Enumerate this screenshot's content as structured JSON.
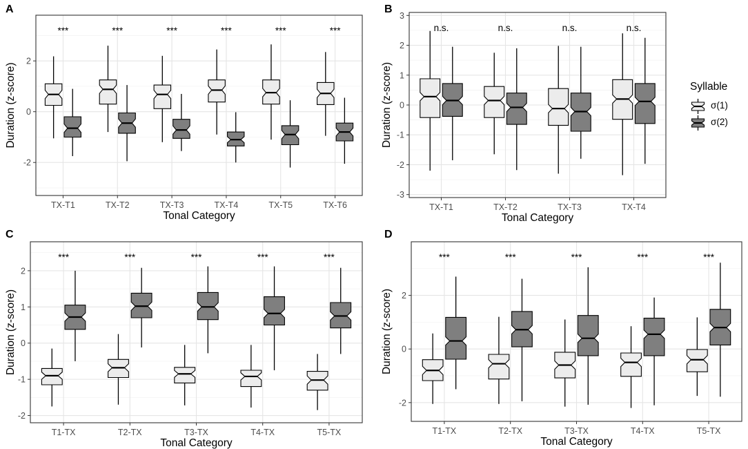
{
  "colors": {
    "sigma1": "#ececec",
    "sigma2": "#7f7f7f",
    "grid": "#e5e5e5",
    "border": "#333333"
  },
  "legend": {
    "title": "Syllable",
    "items": [
      {
        "label": "σ(1)",
        "color": "#ececec"
      },
      {
        "label": "σ(2)",
        "color": "#7f7f7f"
      }
    ]
  },
  "chart_data": [
    {
      "type": "boxplot",
      "panel": "A",
      "xlabel": "Tonal Category",
      "ylabel": "Duration (z-score)",
      "ylim": [
        -3.3,
        3.8
      ],
      "yticks": [
        -2,
        0,
        2
      ],
      "categories": [
        "TX-T1",
        "TX-T2",
        "TX-T3",
        "TX-T4",
        "TX-T5",
        "TX-T6"
      ],
      "significance": [
        "***",
        "***",
        "***",
        "***",
        "***",
        "***"
      ],
      "series": [
        {
          "name": "σ(1)",
          "boxes": [
            {
              "min": -1.05,
              "q1": 0.25,
              "median": 0.68,
              "q3": 1.1,
              "max": 2.18
            },
            {
              "min": -0.8,
              "q1": 0.3,
              "median": 0.88,
              "q3": 1.25,
              "max": 2.6
            },
            {
              "min": -1.2,
              "q1": 0.12,
              "median": 0.68,
              "q3": 1.05,
              "max": 2.2
            },
            {
              "min": -0.9,
              "q1": 0.38,
              "median": 0.85,
              "q3": 1.25,
              "max": 2.45
            },
            {
              "min": -1.1,
              "q1": 0.3,
              "median": 0.75,
              "q3": 1.25,
              "max": 2.65
            },
            {
              "min": -0.95,
              "q1": 0.28,
              "median": 0.72,
              "q3": 1.15,
              "max": 2.35
            }
          ]
        },
        {
          "name": "σ(2)",
          "boxes": [
            {
              "min": -1.75,
              "q1": -1.0,
              "median": -0.65,
              "q3": -0.2,
              "max": 0.9
            },
            {
              "min": -1.95,
              "q1": -0.85,
              "median": -0.45,
              "q3": -0.05,
              "max": 1.05
            },
            {
              "min": -1.55,
              "q1": -1.05,
              "median": -0.72,
              "q3": -0.3,
              "max": 0.7
            },
            {
              "min": -2.0,
              "q1": -1.35,
              "median": -1.1,
              "q3": -0.8,
              "max": -0.02
            },
            {
              "min": -2.2,
              "q1": -1.3,
              "median": -0.9,
              "q3": -0.55,
              "max": 0.45
            },
            {
              "min": -2.05,
              "q1": -1.15,
              "median": -0.8,
              "q3": -0.45,
              "max": 0.55
            }
          ]
        }
      ]
    },
    {
      "type": "boxplot",
      "panel": "B",
      "xlabel": "Tonal Category",
      "ylabel": "Duration (z-score)",
      "ylim": [
        -3.1,
        3.1
      ],
      "yticks": [
        -3,
        -2,
        -1,
        0,
        1,
        2,
        3
      ],
      "categories": [
        "TX-T1",
        "TX-T2",
        "TX-T3",
        "TX-T4"
      ],
      "significance": [
        "n.s.",
        "n.s.",
        "n.s.",
        "n.s."
      ],
      "series": [
        {
          "name": "σ(1)",
          "boxes": [
            {
              "min": -2.2,
              "q1": -0.42,
              "median": 0.28,
              "q3": 0.88,
              "max": 2.48
            },
            {
              "min": -1.65,
              "q1": -0.42,
              "median": 0.15,
              "q3": 0.62,
              "max": 1.75
            },
            {
              "min": -2.3,
              "q1": -0.68,
              "median": -0.12,
              "q3": 0.55,
              "max": 1.98
            },
            {
              "min": -2.35,
              "q1": -0.48,
              "median": 0.2,
              "q3": 0.85,
              "max": 2.4
            }
          ]
        },
        {
          "name": "σ(2)",
          "boxes": [
            {
              "min": -1.85,
              "q1": -0.38,
              "median": 0.15,
              "q3": 0.72,
              "max": 1.95
            },
            {
              "min": -2.18,
              "q1": -0.65,
              "median": -0.08,
              "q3": 0.4,
              "max": 1.9
            },
            {
              "min": -1.8,
              "q1": -0.88,
              "median": -0.22,
              "q3": 0.4,
              "max": 1.95
            },
            {
              "min": -1.97,
              "q1": -0.62,
              "median": 0.12,
              "q3": 0.72,
              "max": 2.25
            }
          ]
        }
      ]
    },
    {
      "type": "boxplot",
      "panel": "C",
      "xlabel": "Tonal Category",
      "ylabel": "Duration (z-score)",
      "ylim": [
        -2.2,
        2.8
      ],
      "yticks": [
        -2,
        -1,
        0,
        1,
        2
      ],
      "categories": [
        "T1-TX",
        "T2-TX",
        "T3-TX",
        "T4-TX",
        "T5-TX"
      ],
      "significance": [
        "***",
        "***",
        "***",
        "***",
        "***"
      ],
      "series": [
        {
          "name": "σ(1)",
          "boxes": [
            {
              "min": -1.75,
              "q1": -1.15,
              "median": -0.9,
              "q3": -0.7,
              "max": -0.15
            },
            {
              "min": -1.7,
              "q1": -0.95,
              "median": -0.68,
              "q3": -0.45,
              "max": 0.25
            },
            {
              "min": -1.72,
              "q1": -1.1,
              "median": -0.85,
              "q3": -0.67,
              "max": -0.05
            },
            {
              "min": -1.78,
              "q1": -1.2,
              "median": -0.92,
              "q3": -0.75,
              "max": -0.05
            },
            {
              "min": -1.85,
              "q1": -1.3,
              "median": -1.02,
              "q3": -0.78,
              "max": -0.3
            }
          ]
        },
        {
          "name": "σ(2)",
          "boxes": [
            {
              "min": -0.5,
              "q1": 0.38,
              "median": 0.72,
              "q3": 1.05,
              "max": 2.0
            },
            {
              "min": -0.12,
              "q1": 0.7,
              "median": 1.02,
              "q3": 1.38,
              "max": 2.08
            },
            {
              "min": -0.28,
              "q1": 0.65,
              "median": 1.0,
              "q3": 1.4,
              "max": 2.12
            },
            {
              "min": -0.75,
              "q1": 0.5,
              "median": 0.82,
              "q3": 1.28,
              "max": 2.12
            },
            {
              "min": -0.3,
              "q1": 0.42,
              "median": 0.75,
              "q3": 1.12,
              "max": 2.08
            }
          ]
        }
      ]
    },
    {
      "type": "boxplot",
      "panel": "D",
      "xlabel": "Tonal Category",
      "ylabel": "Duration (z-score)",
      "ylim": [
        -2.7,
        4.0
      ],
      "yticks": [
        -2,
        0,
        2
      ],
      "categories": [
        "T1-TX",
        "T2-TX",
        "T3-TX",
        "T4-TX",
        "T5-TX"
      ],
      "significance": [
        "***",
        "***",
        "***",
        "***",
        "***"
      ],
      "series": [
        {
          "name": "σ(1)",
          "boxes": [
            {
              "min": -2.05,
              "q1": -1.18,
              "median": -0.8,
              "q3": -0.4,
              "max": 0.58
            },
            {
              "min": -2.05,
              "q1": -1.12,
              "median": -0.55,
              "q3": -0.2,
              "max": 1.2
            },
            {
              "min": -2.15,
              "q1": -1.08,
              "median": -0.6,
              "q3": -0.12,
              "max": 1.1
            },
            {
              "min": -2.2,
              "q1": -1.02,
              "median": -0.5,
              "q3": -0.15,
              "max": 0.85
            },
            {
              "min": -1.75,
              "q1": -0.85,
              "median": -0.4,
              "q3": -0.02,
              "max": 1.18
            }
          ]
        },
        {
          "name": "σ(2)",
          "boxes": [
            {
              "min": -1.5,
              "q1": -0.38,
              "median": 0.3,
              "q3": 1.18,
              "max": 2.7
            },
            {
              "min": -1.95,
              "q1": 0.08,
              "median": 0.72,
              "q3": 1.4,
              "max": 2.62
            },
            {
              "min": -2.08,
              "q1": -0.25,
              "median": 0.4,
              "q3": 1.25,
              "max": 3.05
            },
            {
              "min": -2.1,
              "q1": -0.25,
              "median": 0.55,
              "q3": 1.15,
              "max": 1.92
            },
            {
              "min": -1.78,
              "q1": 0.15,
              "median": 0.8,
              "q3": 1.48,
              "max": 3.22
            }
          ]
        }
      ]
    }
  ]
}
